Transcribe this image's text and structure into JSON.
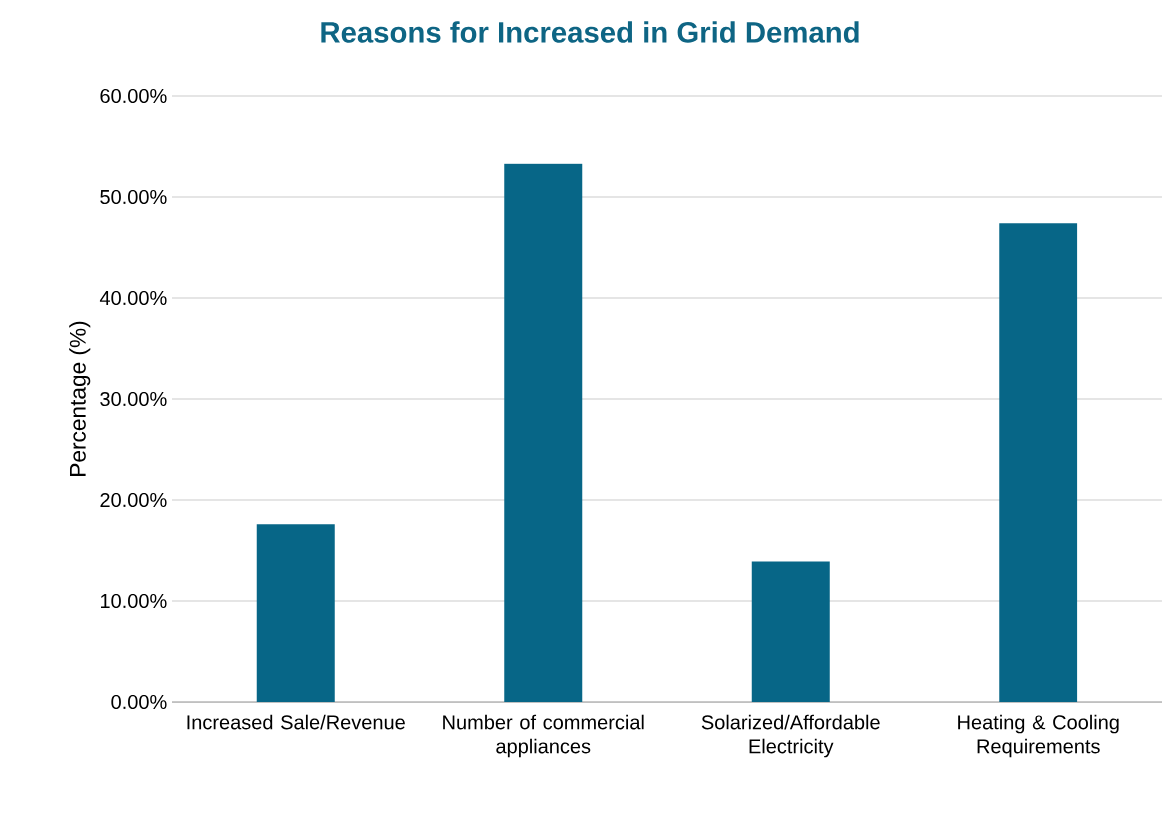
{
  "chart_data": {
    "type": "bar",
    "title": "Reasons for Increased in Grid Demand",
    "ylabel": "Percentage (%)",
    "categories": [
      "Increased Sale/Revenue",
      "Number of commercial appliances",
      "Solarized/Affordable Electricity",
      "Heating & Cooling Requirements"
    ],
    "values": [
      17.6,
      53.3,
      13.9,
      47.4
    ],
    "color": "#076687",
    "ylim": [
      0,
      60
    ],
    "yticks": [
      {
        "value": 0,
        "label": "0.00%"
      },
      {
        "value": 10,
        "label": "10.00%"
      },
      {
        "value": 20,
        "label": "20.00%"
      },
      {
        "value": 30,
        "label": "30.00%"
      },
      {
        "value": 40,
        "label": "40.00%"
      },
      {
        "value": 50,
        "label": "50.00%"
      },
      {
        "value": 60,
        "label": "60.00%"
      }
    ],
    "grid": "y"
  }
}
